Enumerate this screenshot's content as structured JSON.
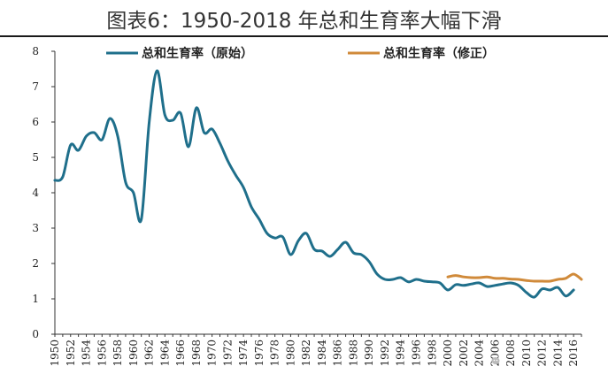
{
  "title": "图表6：1950-2018 年总和生育率大幅下滑",
  "chart_data": {
    "type": "line",
    "title": "图表6：1950-2018 年总和生育率大幅下滑",
    "xlabel": "",
    "ylabel": "",
    "xlim": [
      1950,
      2017
    ],
    "ylim": [
      0,
      8
    ],
    "yticks": [
      0,
      1,
      2,
      3,
      4,
      5,
      6,
      7,
      8
    ],
    "xticks": [
      1950,
      1952,
      1954,
      1956,
      1958,
      1960,
      1962,
      1964,
      1966,
      1968,
      1970,
      1972,
      1974,
      1976,
      1978,
      1980,
      1982,
      1984,
      1986,
      1988,
      1990,
      1992,
      1994,
      1996,
      1998,
      2000,
      2002,
      2004,
      2006,
      2008,
      2010,
      2012,
      2014,
      2016
    ],
    "grid": false,
    "legend": "top",
    "series": [
      {
        "name": "总和生育率（原始）",
        "color": "#1f6f8b",
        "x": [
          1950,
          1951,
          1952,
          1953,
          1954,
          1955,
          1956,
          1957,
          1958,
          1959,
          1960,
          1961,
          1962,
          1963,
          1964,
          1965,
          1966,
          1967,
          1968,
          1969,
          1970,
          1971,
          1972,
          1973,
          1974,
          1975,
          1976,
          1977,
          1978,
          1979,
          1980,
          1981,
          1982,
          1983,
          1984,
          1985,
          1986,
          1987,
          1988,
          1989,
          1990,
          1991,
          1992,
          1993,
          1994,
          1995,
          1996,
          1997,
          1998,
          1999,
          2000,
          2001,
          2002,
          2003,
          2004,
          2005,
          2006,
          2007,
          2008,
          2009,
          2010,
          2011,
          2012,
          2013,
          2014,
          2015,
          2016
        ],
        "values": [
          4.35,
          4.45,
          5.35,
          5.2,
          5.6,
          5.7,
          5.5,
          6.1,
          5.6,
          4.3,
          4.0,
          3.25,
          6.0,
          7.45,
          6.2,
          6.05,
          6.25,
          5.3,
          6.4,
          5.7,
          5.8,
          5.4,
          4.9,
          4.5,
          4.15,
          3.6,
          3.25,
          2.85,
          2.72,
          2.75,
          2.25,
          2.65,
          2.85,
          2.4,
          2.35,
          2.2,
          2.4,
          2.6,
          2.3,
          2.25,
          2.05,
          1.7,
          1.55,
          1.55,
          1.6,
          1.48,
          1.55,
          1.5,
          1.48,
          1.45,
          1.25,
          1.4,
          1.38,
          1.42,
          1.45,
          1.35,
          1.38,
          1.42,
          1.45,
          1.38,
          1.18,
          1.05,
          1.28,
          1.25,
          1.32,
          1.08,
          1.25
        ]
      },
      {
        "name": "总和生育率（修正）",
        "color": "#d08a3a",
        "x": [
          2000,
          2001,
          2002,
          2003,
          2004,
          2005,
          2006,
          2007,
          2008,
          2009,
          2010,
          2011,
          2012,
          2013,
          2014,
          2015,
          2016,
          2017
        ],
        "values": [
          1.62,
          1.66,
          1.62,
          1.6,
          1.6,
          1.62,
          1.58,
          1.58,
          1.56,
          1.55,
          1.52,
          1.5,
          1.5,
          1.5,
          1.55,
          1.58,
          1.7,
          1.55
        ]
      }
    ]
  }
}
